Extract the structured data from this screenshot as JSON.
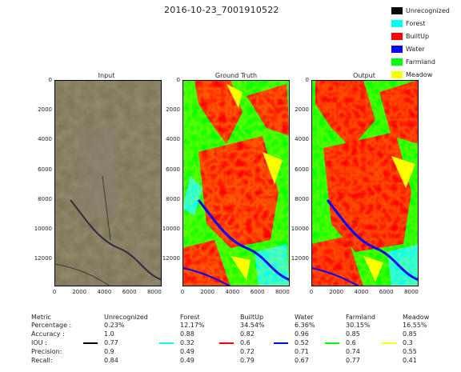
{
  "figure_title": "2016-10-23_7001910522",
  "legend": [
    {
      "label": "Unrecognized",
      "color": "#000000"
    },
    {
      "label": "Forest",
      "color": "#00ffff"
    },
    {
      "label": "BuiltUp",
      "color": "#ff0000"
    },
    {
      "label": "Water",
      "color": "#0000ff"
    },
    {
      "label": "Farmland",
      "color": "#00ff00"
    },
    {
      "label": "Meadow",
      "color": "#ffff00"
    }
  ],
  "panels": [
    {
      "title": "Input"
    },
    {
      "title": "Ground Truth"
    },
    {
      "title": "Output"
    }
  ],
  "axes": {
    "yticks": [
      "0",
      "2000",
      "4000",
      "6000",
      "8000",
      "10000",
      "12000"
    ],
    "xticks": [
      "0",
      "2000",
      "4000",
      "6000",
      "8000"
    ]
  },
  "metrics_table": {
    "header": [
      "Metric",
      "Unrecognized",
      "Forest",
      "BuiltUp",
      "Water",
      "Farmland",
      "Meadow"
    ],
    "row_labels": [
      "Percentage :",
      "Accuracy :",
      "IOU :",
      "Precision:",
      "Recall:"
    ],
    "columns": [
      {
        "name": "Unrecognized",
        "color": "#000000",
        "values": [
          "0.23%",
          "1.0",
          "0.77",
          "0.9",
          "0.84"
        ]
      },
      {
        "name": "Forest",
        "color": "#00ffff",
        "values": [
          "12.17%",
          "0.88",
          "0.32",
          "0.49",
          "0.49"
        ]
      },
      {
        "name": "BuiltUp",
        "color": "#ff0000",
        "values": [
          "34.54%",
          "0.82",
          "0.6",
          "0.72",
          "0.79"
        ]
      },
      {
        "name": "Water",
        "color": "#0000ff",
        "values": [
          "6.36%",
          "0.96",
          "0.52",
          "0.71",
          "0.67"
        ]
      },
      {
        "name": "Farmland",
        "color": "#00ff00",
        "values": [
          "30.15%",
          "0.85",
          "0.6",
          "0.74",
          "0.77"
        ]
      },
      {
        "name": "Meadow",
        "color": "#ffff00",
        "values": [
          "16.55%",
          "0.85",
          "0.3",
          "0.55",
          "0.41"
        ]
      }
    ]
  }
}
